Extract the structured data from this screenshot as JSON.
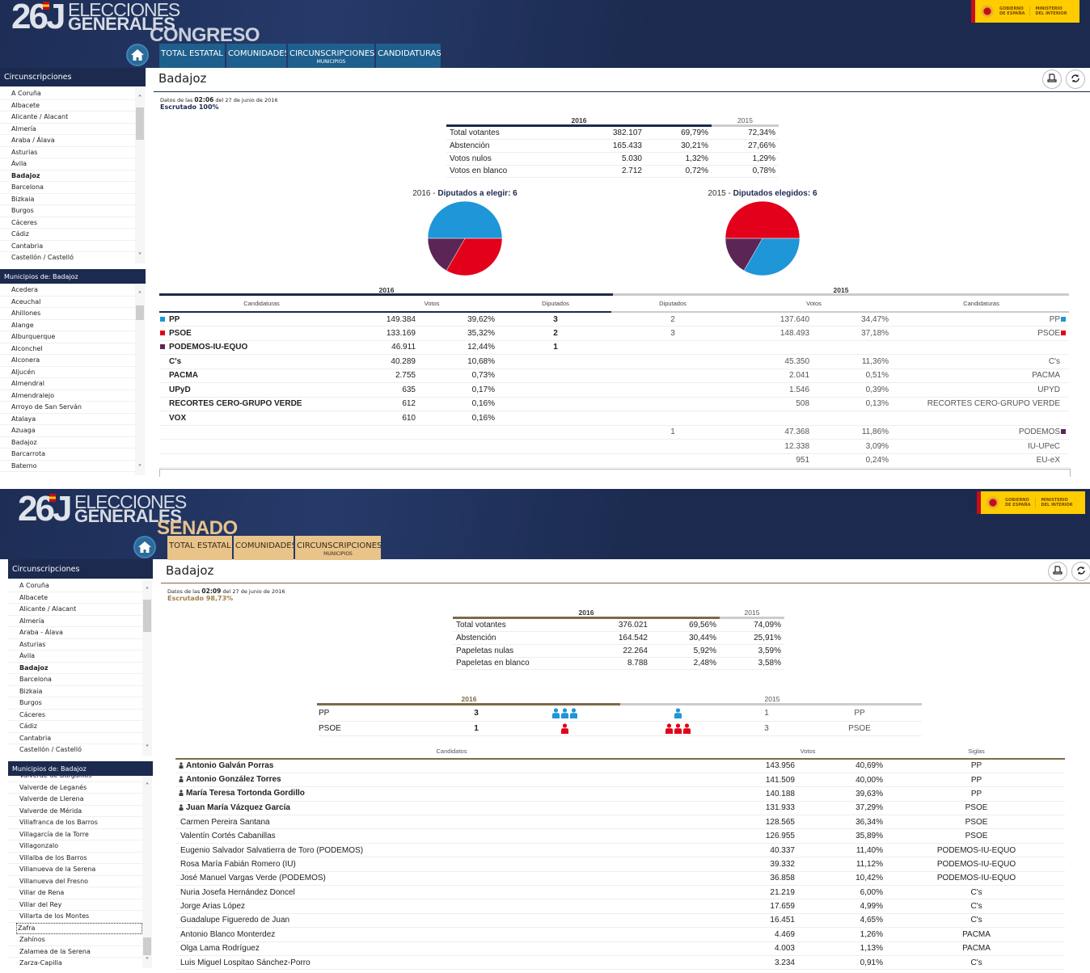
{
  "congreso": {
    "logo": {
      "number": "26J",
      "line1": "ELECCIONES",
      "line2": "GENERALES"
    },
    "chamber": "CONGRESO",
    "tabs": [
      {
        "label": "TOTAL ESTATAL"
      },
      {
        "label": "COMUNIDADES"
      },
      {
        "label": "CIRCUNSCRIPCIONES",
        "sub": "MUNICIPIOS"
      },
      {
        "label": "CANDIDATURAS"
      }
    ],
    "gov_logo": {
      "line1": "GOBIERNO",
      "line2": "DE ESPAÑA",
      "line3": "MINISTERIO",
      "line4": "DEL INTERIOR"
    },
    "sidebar": {
      "circ_title": "Circunscripciones",
      "circ_items": [
        "A Coruña",
        "Albacete",
        "Alicante / Alacant",
        "Almería",
        "Araba / Álava",
        "Asturias",
        "Ávila",
        "Badajoz",
        "Barcelona",
        "Bizkaia",
        "Burgos",
        "Cáceres",
        "Cádiz",
        "Cantabria",
        "Castellón / Castelló"
      ],
      "selected": "Badajoz",
      "muni_title": "Municipios de: Badajoz",
      "muni_items": [
        "Acedera",
        "Aceuchal",
        "Ahillones",
        "Alange",
        "Alburquerque",
        "Alconchel",
        "Alconera",
        "Aljucén",
        "Almendral",
        "Almendralejo",
        "Arroyo de San Serván",
        "Atalaya",
        "Azuaga",
        "Badajoz",
        "Barcarrota",
        "Baterno"
      ]
    },
    "main": {
      "title": "Badajoz",
      "datos_prefix": "Datos de las",
      "time": "02:06",
      "datos_suffix": "del 27 de junio de 2016",
      "escrutado": "Escrutado 100%",
      "summary": {
        "year_a": "2016",
        "year_b": "2015",
        "rows": [
          {
            "label": "Total votantes",
            "votes": "382.107",
            "pct": "69,79%",
            "pct_prev": "72,34%"
          },
          {
            "label": "Abstención",
            "votes": "165.433",
            "pct": "30,21%",
            "pct_prev": "27,66%"
          },
          {
            "label": "Votos nulos",
            "votes": "5.030",
            "pct": "1,32%",
            "pct_prev": "1,29%"
          },
          {
            "label": "Votos en blanco",
            "votes": "2.712",
            "pct": "0,72%",
            "pct_prev": "0,78%"
          }
        ]
      },
      "pies": [
        {
          "year": "2016",
          "sep": " - ",
          "label": "Diputados a elegir: 6",
          "slices": [
            {
              "party": "PP",
              "seats": 3,
              "color": "#1e96d8"
            },
            {
              "party": "PSOE",
              "seats": 2,
              "color": "#e2001a"
            },
            {
              "party": "PODEMOS-IU-EQUO",
              "seats": 1,
              "color": "#5b2656"
            }
          ]
        },
        {
          "year": "2015",
          "sep": " - ",
          "label": "Diputados elegidos: 6",
          "slices": [
            {
              "party": "PSOE",
              "seats": 3,
              "color": "#e2001a"
            },
            {
              "party": "PP",
              "seats": 2,
              "color": "#1e96d8"
            },
            {
              "party": "PODEMOS",
              "seats": 1,
              "color": "#5b2656"
            }
          ]
        }
      ],
      "results": {
        "year_a": "2016",
        "year_b": "2015",
        "headers": {
          "cand": "Candidaturas",
          "votes": "Votos",
          "seats": "Diputados",
          "seats_prev": "Diputados",
          "votes_prev": "Votos",
          "cand_prev": "Candidaturas"
        },
        "rows": [
          {
            "party": "PP",
            "color": "#1e96d8",
            "votes": "149.384",
            "pct": "39,62%",
            "seats": "3",
            "prev_seats": "2",
            "prev_votes": "137.640",
            "prev_pct": "34,47%",
            "prev_party": "PP",
            "prev_color": "#1e96d8"
          },
          {
            "party": "PSOE",
            "color": "#e2001a",
            "votes": "133.169",
            "pct": "35,32%",
            "seats": "2",
            "prev_seats": "3",
            "prev_votes": "148.493",
            "prev_pct": "37,18%",
            "prev_party": "PSOE",
            "prev_color": "#e2001a"
          },
          {
            "party": "PODEMOS-IU-EQUO",
            "color": "#5b2656",
            "votes": "46.911",
            "pct": "12,44%",
            "seats": "1",
            "prev_seats": "",
            "prev_votes": "",
            "prev_pct": "",
            "prev_party": ""
          },
          {
            "party": "C's",
            "votes": "40.289",
            "pct": "10,68%",
            "seats": "",
            "prev_seats": "",
            "prev_votes": "45.350",
            "prev_pct": "11,36%",
            "prev_party": "C's"
          },
          {
            "party": "PACMA",
            "votes": "2.755",
            "pct": "0,73%",
            "seats": "",
            "prev_seats": "",
            "prev_votes": "2.041",
            "prev_pct": "0,51%",
            "prev_party": "PACMA"
          },
          {
            "party": "UPyD",
            "votes": "635",
            "pct": "0,17%",
            "seats": "",
            "prev_seats": "",
            "prev_votes": "1.546",
            "prev_pct": "0,39%",
            "prev_party": "UPYD"
          },
          {
            "party": "RECORTES CERO-GRUPO VERDE",
            "votes": "612",
            "pct": "0,16%",
            "seats": "",
            "prev_seats": "",
            "prev_votes": "508",
            "prev_pct": "0,13%",
            "prev_party": "RECORTES CERO-GRUPO VERDE"
          },
          {
            "party": "VOX",
            "votes": "610",
            "pct": "0,16%",
            "seats": "",
            "prev_seats": "",
            "prev_votes": "",
            "prev_pct": "",
            "prev_party": ""
          },
          {
            "party": "",
            "votes": "",
            "pct": "",
            "seats": "",
            "prev_seats": "1",
            "prev_votes": "47.368",
            "prev_pct": "11,86%",
            "prev_party": "PODEMOS",
            "prev_color": "#5b2656"
          },
          {
            "party": "",
            "votes": "",
            "pct": "",
            "seats": "",
            "prev_seats": "",
            "prev_votes": "12.338",
            "prev_pct": "3,09%",
            "prev_party": "IU-UPeC"
          },
          {
            "party": "",
            "votes": "",
            "pct": "",
            "seats": "",
            "prev_seats": "",
            "prev_votes": "951",
            "prev_pct": "0,24%",
            "prev_party": "EU-eX"
          }
        ]
      }
    }
  },
  "senado": {
    "logo": {
      "number": "26J",
      "line1": "ELECCIONES",
      "line2": "GENERALES"
    },
    "chamber": "SENADO",
    "tabs": [
      {
        "label": "TOTAL ESTATAL"
      },
      {
        "label": "COMUNIDADES"
      },
      {
        "label": "CIRCUNSCRIPCIONES",
        "sub": "MUNICIPIOS"
      }
    ],
    "gov_logo": {
      "line1": "GOBIERNO",
      "line2": "DE ESPAÑA",
      "line3": "MINISTERIO",
      "line4": "DEL INTERIOR"
    },
    "sidebar": {
      "circ_title": "Circunscripciones",
      "circ_items": [
        "A Coruña",
        "Albacete",
        "Alicante / Alacant",
        "Almería",
        "Araba - Álava",
        "Asturias",
        "Ávila",
        "Badajoz",
        "Barcelona",
        "Bizkaia",
        "Burgos",
        "Cáceres",
        "Cádiz",
        "Cantabria",
        "Castellón / Castelló"
      ],
      "selected": "Badajoz",
      "muni_title": "Municipios de: Badajoz",
      "muni_items": [
        "Valverde de Burguillos",
        "Valverde de Leganés",
        "Valverde de Llerena",
        "Valverde de Mérida",
        "Villafranca de los Barros",
        "Villagarcía de la Torre",
        "Villagonzalo",
        "Villalba de los Barros",
        "Villanueva de la Serena",
        "Villanueva del Fresno",
        "Villar de Rena",
        "Villar del Rey",
        "Villarta de los Montes",
        "Zafra",
        "Zahínos",
        "Zalamea de la Serena",
        "Zarza-Capilla"
      ],
      "focused": "Zafra"
    },
    "main": {
      "title": "Badajoz",
      "datos_prefix": "Datos de las",
      "time": "02:09",
      "datos_suffix": "del 27 de junio de 2016",
      "escrutado": "Escrutado 98,73%",
      "summary": {
        "year_a": "2016",
        "year_b": "2015",
        "rows": [
          {
            "label": "Total votantes",
            "votes": "376.021",
            "pct": "69,56%",
            "pct_prev": "74,09%"
          },
          {
            "label": "Abstención",
            "votes": "164.542",
            "pct": "30,44%",
            "pct_prev": "25,91%"
          },
          {
            "label": "Papeletas nulas",
            "votes": "22.264",
            "pct": "5,92%",
            "pct_prev": "3,59%"
          },
          {
            "label": "Papeletas en blanco",
            "votes": "8.788",
            "pct": "2,48%",
            "pct_prev": "3,58%"
          }
        ]
      },
      "seats": {
        "year_a": "2016",
        "year_b": "2015",
        "rows": [
          {
            "party": "PP",
            "seats": 3,
            "color": "#1e96d8",
            "prev_seats": 1,
            "prev_party": "PP"
          },
          {
            "party": "PSOE",
            "seats": 1,
            "color": "#e2001a",
            "prev_seats": 3,
            "prev_party": "PSOE"
          }
        ]
      },
      "candidates": {
        "headers": {
          "name": "Candidatos",
          "votes": "Votos",
          "party": "Siglas"
        },
        "rows": [
          {
            "name": "Antonio Galván Porras",
            "elected": true,
            "votes": "143.956",
            "pct": "40,69%",
            "party": "PP"
          },
          {
            "name": "Antonio González Torres",
            "elected": true,
            "votes": "141.509",
            "pct": "40,00%",
            "party": "PP"
          },
          {
            "name": "María Teresa Tortonda Gordillo",
            "elected": true,
            "votes": "140.188",
            "pct": "39,63%",
            "party": "PP"
          },
          {
            "name": "Juan María Vázquez García",
            "elected": true,
            "votes": "131.933",
            "pct": "37,29%",
            "party": "PSOE"
          },
          {
            "name": "Carmen Pereira Santana",
            "elected": false,
            "votes": "128.565",
            "pct": "36,34%",
            "party": "PSOE"
          },
          {
            "name": "Valentín Cortés Cabanillas",
            "elected": false,
            "votes": "126.955",
            "pct": "35,89%",
            "party": "PSOE"
          },
          {
            "name": "Eugenio Salvador Salvatierra de Toro (PODEMOS)",
            "elected": false,
            "votes": "40.337",
            "pct": "11,40%",
            "party": "PODEMOS-IU-EQUO"
          },
          {
            "name": "Rosa María Fabián Romero (IU)",
            "elected": false,
            "votes": "39.332",
            "pct": "11,12%",
            "party": "PODEMOS-IU-EQUO"
          },
          {
            "name": "José Manuel Vargas Verde (PODEMOS)",
            "elected": false,
            "votes": "36.858",
            "pct": "10,42%",
            "party": "PODEMOS-IU-EQUO"
          },
          {
            "name": "Nuria Josefa Hernández Doncel",
            "elected": false,
            "votes": "21.219",
            "pct": "6,00%",
            "party": "C's"
          },
          {
            "name": "Jorge Arias López",
            "elected": false,
            "votes": "17.659",
            "pct": "4,99%",
            "party": "C's"
          },
          {
            "name": "Guadalupe Figueredo de Juan",
            "elected": false,
            "votes": "16.451",
            "pct": "4,65%",
            "party": "C's"
          },
          {
            "name": "Antonio Blanco Monterdez",
            "elected": false,
            "votes": "4.469",
            "pct": "1,26%",
            "party": "PACMA"
          },
          {
            "name": "Olga Lama Rodríguez",
            "elected": false,
            "votes": "4.003",
            "pct": "1,13%",
            "party": "PACMA"
          },
          {
            "name": "Luis Miguel Lospitao Sánchez-Porro",
            "elected": false,
            "votes": "3.234",
            "pct": "0,91%",
            "party": "C's"
          }
        ]
      }
    }
  },
  "colors": {
    "navy": "#1b2a4e",
    "congreso_tab": "#1f5f8d",
    "senado_tab": "#e8c38a",
    "senado_accent": "#7d6a48",
    "pp": "#1e96d8",
    "psoe": "#e2001a",
    "podemos": "#5b2656"
  }
}
